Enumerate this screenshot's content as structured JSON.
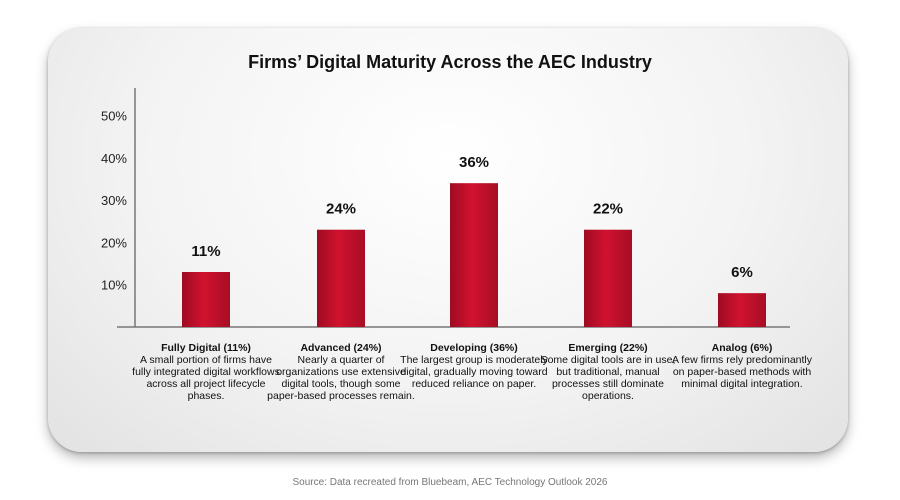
{
  "chart_data": {
    "type": "bar",
    "title": "Firms’ Digital Maturity Across the AEC Industry",
    "categories": [
      "Fully Digital (11%)",
      "Advanced (24%)",
      "Developing (36%)",
      "Emerging (22%)",
      "Analog (6%)"
    ],
    "values": [
      11,
      24,
      36,
      22,
      6
    ],
    "bar_heights_approx": [
      13,
      23,
      34,
      23,
      8
    ],
    "data_labels": [
      "11%",
      "24%",
      "36%",
      "22%",
      "6%"
    ],
    "descriptions": [
      "A small portion of firms have fully integrated digital workflows across all project lifecycle phases.",
      "Nearly a quarter of organizations use extensive digital tools, though some paper-based processes remain.",
      "The largest group is moderately digital, gradually moving toward reduced reliance on paper.",
      "Some digital tools are in use, but traditional, manual processes still dominate operations.",
      "A few firms rely predominantly on paper-based methods with minimal digital integration."
    ],
    "yticks": [
      "10%",
      "20%",
      "30%",
      "40%",
      "50%"
    ],
    "ytick_values": [
      10,
      20,
      30,
      40,
      50
    ],
    "ylim": [
      0,
      56
    ],
    "xlabel": "",
    "ylabel": "",
    "grid": false,
    "legend": "none",
    "bar_color": "#c8102e"
  },
  "source": "Source: Data recreated from Bluebeam, AEC Technology Outlook 2026"
}
